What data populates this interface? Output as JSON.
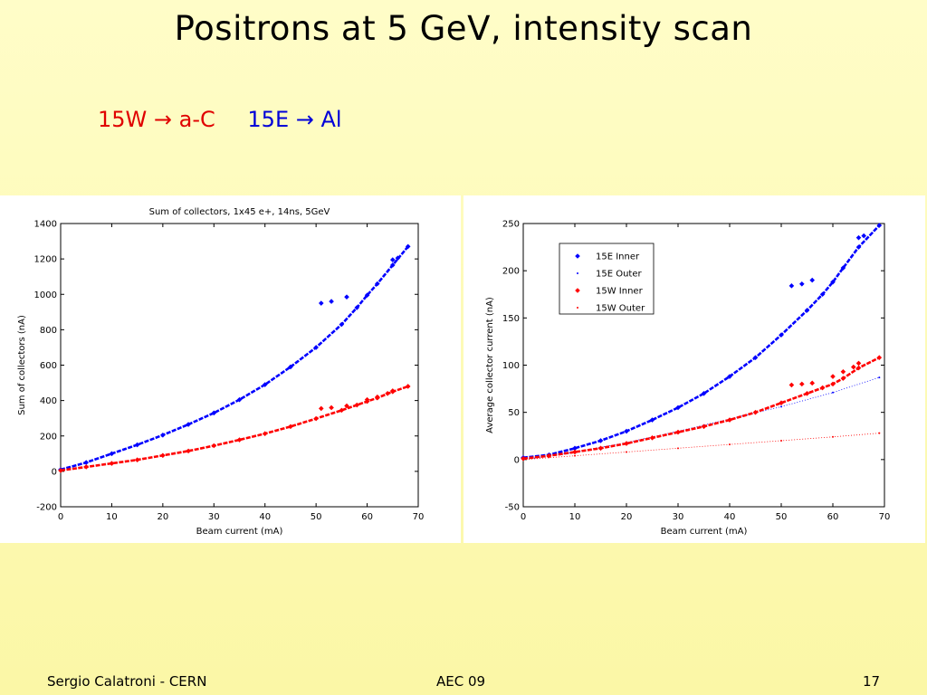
{
  "slide": {
    "title": "Positrons at 5 GeV, intensity scan",
    "subtitle_red": "15W → a-C",
    "subtitle_blue": "15E → Al",
    "footer_left": "Sergio Calatroni - CERN",
    "footer_center": "AEC 09",
    "footer_right": "17"
  },
  "colors": {
    "blue": "#0000ff",
    "red": "#ff0000"
  },
  "chart_data": [
    {
      "type": "scatter",
      "title": "Sum of collectors, 1x45 e+, 14ns, 5GeV",
      "xlabel": "Beam current (mA)",
      "ylabel": "Sum of collectors (nA)",
      "xlim": [
        0,
        70
      ],
      "ylim": [
        -200,
        1400
      ],
      "xticks": [
        0,
        10,
        20,
        30,
        40,
        50,
        60,
        70
      ],
      "yticks": [
        -200,
        0,
        200,
        400,
        600,
        800,
        1000,
        1200,
        1400
      ],
      "grid": false,
      "legend": null,
      "series": [
        {
          "color": "#0000ff",
          "marker": "diamond",
          "x": [
            0,
            5,
            10,
            15,
            20,
            25,
            30,
            35,
            40,
            45,
            50,
            55,
            58,
            60,
            62,
            65,
            68,
            51,
            53,
            56,
            65,
            66
          ],
          "y": [
            10,
            50,
            100,
            150,
            205,
            265,
            330,
            405,
            490,
            590,
            700,
            830,
            925,
            995,
            1060,
            1165,
            1270,
            950,
            960,
            985,
            1195,
            1205
          ]
        },
        {
          "color": "#ff0000",
          "marker": "diamond",
          "x": [
            0,
            5,
            10,
            15,
            20,
            25,
            30,
            35,
            40,
            45,
            50,
            55,
            58,
            60,
            62,
            65,
            68,
            51,
            53,
            56,
            60,
            62,
            64,
            65
          ],
          "y": [
            5,
            25,
            45,
            65,
            90,
            115,
            145,
            178,
            213,
            253,
            298,
            345,
            375,
            395,
            415,
            450,
            480,
            355,
            360,
            370,
            405,
            420,
            440,
            455
          ]
        }
      ]
    },
    {
      "type": "scatter",
      "title": "",
      "xlabel": "Beam current (mA)",
      "ylabel": "Average collector current (nA)",
      "xlim": [
        0,
        70
      ],
      "ylim": [
        -50,
        250
      ],
      "xticks": [
        0,
        10,
        20,
        30,
        40,
        50,
        60,
        70
      ],
      "yticks": [
        -50,
        0,
        50,
        100,
        150,
        200,
        250
      ],
      "grid": false,
      "legend": "top-left",
      "series": [
        {
          "name": "15E Inner",
          "color": "#0000ff",
          "marker": "diamond",
          "x": [
            0,
            5,
            10,
            15,
            20,
            25,
            30,
            35,
            40,
            45,
            50,
            55,
            58,
            60,
            62,
            65,
            69,
            52,
            54,
            56,
            65,
            66
          ],
          "y": [
            2,
            5,
            12,
            20,
            30,
            42,
            55,
            70,
            88,
            108,
            132,
            158,
            175,
            188,
            203,
            225,
            248,
            184,
            186,
            190,
            235,
            237
          ]
        },
        {
          "name": "15E Outer",
          "color": "#0000ff",
          "marker": "dot",
          "x": [
            0,
            10,
            20,
            30,
            40,
            50,
            60,
            69
          ],
          "y": [
            0,
            8,
            18,
            30,
            43,
            56,
            71,
            87
          ]
        },
        {
          "name": "15W Inner",
          "color": "#ff0000",
          "marker": "diamond",
          "x": [
            0,
            5,
            10,
            15,
            20,
            25,
            30,
            35,
            40,
            45,
            50,
            55,
            58,
            60,
            62,
            65,
            69,
            52,
            54,
            56,
            60,
            62,
            64,
            65
          ],
          "y": [
            1,
            4,
            8,
            12,
            17,
            23,
            29,
            35,
            42,
            50,
            60,
            70,
            76,
            80,
            86,
            97,
            108,
            79,
            80,
            81,
            88,
            93,
            98,
            102
          ]
        },
        {
          "name": "15W Outer",
          "color": "#ff0000",
          "marker": "dot",
          "x": [
            0,
            10,
            20,
            30,
            40,
            50,
            60,
            69
          ],
          "y": [
            0,
            4,
            8,
            12,
            16,
            20,
            24,
            28
          ]
        }
      ]
    }
  ]
}
